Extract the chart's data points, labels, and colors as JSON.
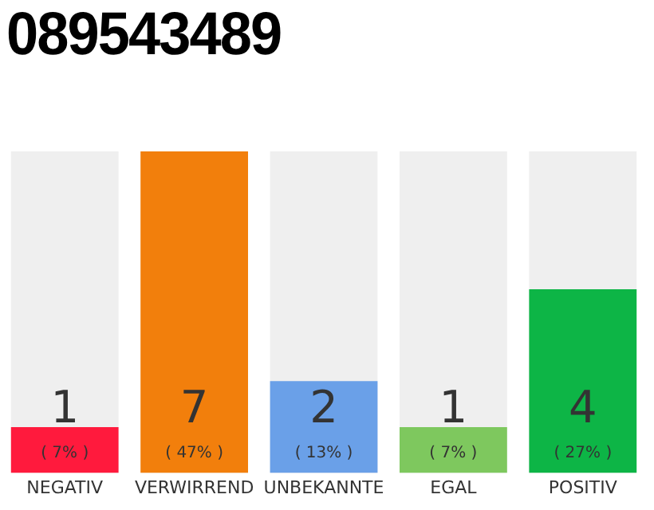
{
  "chart_data": {
    "type": "bar",
    "title": "089543489",
    "categories": [
      "NEGATIV",
      "VERWIRREND",
      "UNBEKANNTE",
      "EGAL",
      "POSITIV"
    ],
    "values": [
      1,
      7,
      2,
      1,
      4
    ],
    "colors": [
      "#ff1a3d",
      "#f27f0c",
      "#6aa0e8",
      "#7ec85e",
      "#0db546"
    ],
    "ylim": [
      0,
      7
    ],
    "data_labels": true,
    "grid": false,
    "legend": false,
    "annotations": [
      "( 7% )",
      "( 47% )",
      "( 13% )",
      "( 7% )",
      "( 27% )"
    ]
  }
}
